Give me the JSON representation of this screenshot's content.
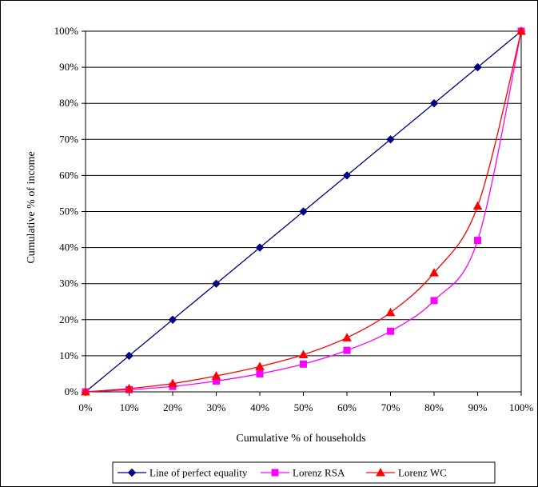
{
  "chart_data": {
    "type": "line",
    "xlabel": "Cumulative % of households",
    "ylabel": "Cumulative % of income",
    "xlim": [
      0,
      100
    ],
    "ylim": [
      0,
      100
    ],
    "x_ticks": [
      "0%",
      "10%",
      "20%",
      "30%",
      "40%",
      "50%",
      "60%",
      "70%",
      "80%",
      "90%",
      "100%"
    ],
    "y_ticks": [
      "0%",
      "10%",
      "20%",
      "30%",
      "40%",
      "50%",
      "60%",
      "70%",
      "80%",
      "90%",
      "100%"
    ],
    "grid": "horizontal",
    "legend_position": "bottom",
    "series": [
      {
        "name": "Line of perfect equality",
        "color": "#000080",
        "marker": "diamond",
        "x": [
          0,
          10,
          20,
          30,
          40,
          50,
          60,
          70,
          80,
          90,
          100
        ],
        "y": [
          0,
          10,
          20,
          30,
          40,
          50,
          60,
          70,
          80,
          90,
          100
        ]
      },
      {
        "name": "Lorenz RSA",
        "color": "#ff00ff",
        "marker": "square",
        "x": [
          0,
          10,
          20,
          30,
          40,
          50,
          60,
          70,
          80,
          90,
          100
        ],
        "y": [
          0,
          0.6,
          1.5,
          3.0,
          5.0,
          7.7,
          11.5,
          16.8,
          25.3,
          42.0,
          100
        ]
      },
      {
        "name": "Lorenz WC",
        "color": "#ff0000",
        "marker": "triangle",
        "x": [
          0,
          10,
          20,
          30,
          40,
          50,
          60,
          70,
          80,
          90,
          100
        ],
        "y": [
          0,
          0.9,
          2.3,
          4.4,
          7.0,
          10.3,
          15.0,
          22.0,
          33.0,
          51.5,
          100
        ]
      }
    ]
  }
}
